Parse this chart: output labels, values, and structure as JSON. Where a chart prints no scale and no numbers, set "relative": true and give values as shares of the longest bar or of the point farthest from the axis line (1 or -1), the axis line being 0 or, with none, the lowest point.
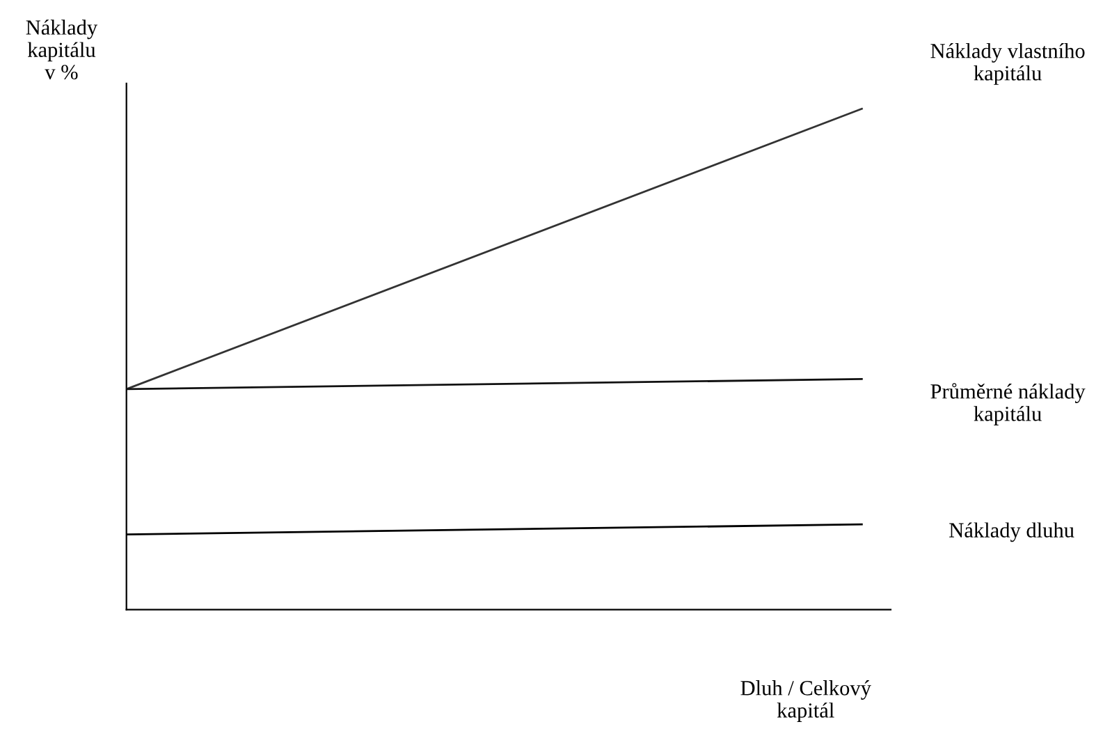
{
  "chart_data": {
    "type": "line",
    "relative": true,
    "ylabel": "Náklady\nkapitálu\nv %",
    "xlabel": "Dluh / Celkový\nkapitál",
    "categories": [
      null,
      null
    ],
    "series": [
      {
        "name": "Náklady vlastního\nkapitálu",
        "color": "#333333",
        "values": [
          0.44,
          1
        ]
      },
      {
        "name": "Průměrné náklady\nkapitálu",
        "color": "#111111",
        "values": [
          0.44,
          0.46
        ]
      },
      {
        "name": "Náklady dluhu",
        "color": "#000000",
        "values": [
          0.15,
          0.17
        ]
      }
    ],
    "legend": false,
    "marker": "none",
    "line_style": "solid"
  }
}
